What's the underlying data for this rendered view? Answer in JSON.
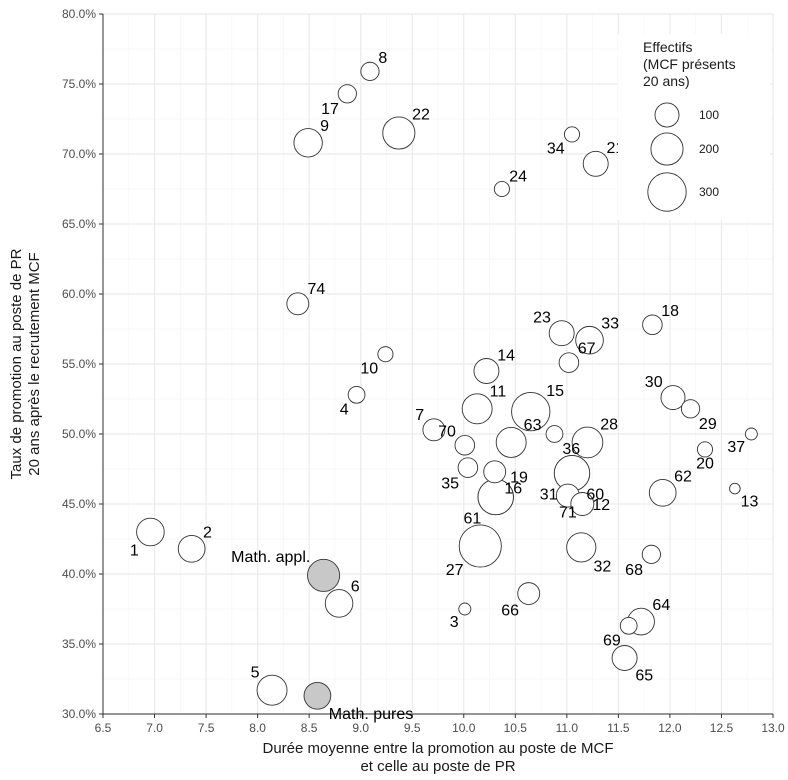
{
  "chart_data": {
    "type": "scatter",
    "xlabel_lines": [
      "Durée moyenne entre la promotion au poste de MCF",
      "et celle au poste de PR"
    ],
    "ylabel_lines": [
      "Taux de promotion au poste de PR",
      "20 ans après le recrutement MCF"
    ],
    "xlim": [
      6.5,
      13.0
    ],
    "ylim": [
      30.0,
      80.0
    ],
    "x_ticks": [
      6.5,
      7.0,
      7.5,
      8.0,
      8.5,
      9.0,
      9.5,
      10.0,
      10.5,
      11.0,
      11.5,
      12.0,
      12.5,
      13.0
    ],
    "x_tick_labels": [
      "6.5",
      "7.0",
      "7.5",
      "8.0",
      "8.5",
      "9.0",
      "9.5",
      "10.0",
      "10.5",
      "11.0",
      "11.5",
      "12.0",
      "12.5",
      "13.0"
    ],
    "y_ticks": [
      30,
      35,
      40,
      45,
      50,
      55,
      60,
      65,
      70,
      75,
      80
    ],
    "y_tick_labels": [
      "30.0%",
      "35.0%",
      "40.0%",
      "45.0%",
      "50.0%",
      "55.0%",
      "60.0%",
      "65.0%",
      "70.0%",
      "75.0%",
      "80.0%"
    ],
    "grid": true,
    "legend": {
      "position": "top-right",
      "title_lines": [
        "Effectifs",
        "(MCF présents",
        "20 ans)"
      ],
      "sizes": [
        100,
        200,
        300
      ],
      "labels": [
        "100",
        "200",
        "300"
      ]
    },
    "colors": {
      "point_fill": "#ffffff",
      "highlight_fill": "#c8c8c8",
      "point_stroke": "#333333"
    },
    "points": [
      {
        "label": "8",
        "x": 9.09,
        "y": 75.9,
        "size": 50,
        "label_pos": "ne"
      },
      {
        "label": "17",
        "x": 8.87,
        "y": 74.3,
        "size": 50,
        "label_pos": "sw"
      },
      {
        "label": "9",
        "x": 8.49,
        "y": 70.8,
        "size": 150,
        "label_pos": "ne"
      },
      {
        "label": "22",
        "x": 9.37,
        "y": 71.5,
        "size": 200,
        "label_pos": "ne"
      },
      {
        "label": "34",
        "x": 11.05,
        "y": 71.4,
        "size": 30,
        "label_pos": "sw"
      },
      {
        "label": "21",
        "x": 11.28,
        "y": 69.3,
        "size": 110,
        "label_pos": "ne"
      },
      {
        "label": "24",
        "x": 10.37,
        "y": 67.5,
        "size": 30,
        "label_pos": "ne"
      },
      {
        "label": "74",
        "x": 8.39,
        "y": 59.3,
        "size": 80,
        "label_pos": "ne"
      },
      {
        "label": "10",
        "x": 9.24,
        "y": 55.7,
        "size": 30,
        "label_pos": "sw"
      },
      {
        "label": "4",
        "x": 8.96,
        "y": 52.8,
        "size": 40,
        "label_pos": "sw"
      },
      {
        "label": "14",
        "x": 10.22,
        "y": 54.5,
        "size": 110,
        "label_pos": "ne"
      },
      {
        "label": "23",
        "x": 10.95,
        "y": 57.2,
        "size": 110,
        "label_pos": "nw"
      },
      {
        "label": "33",
        "x": 11.22,
        "y": 56.7,
        "size": 140,
        "label_pos": "ne"
      },
      {
        "label": "67",
        "x": 11.02,
        "y": 55.1,
        "size": 60,
        "label_pos": "ne"
      },
      {
        "label": "18",
        "x": 11.83,
        "y": 57.8,
        "size": 60,
        "label_pos": "ne"
      },
      {
        "label": "11",
        "x": 10.13,
        "y": 51.8,
        "size": 170,
        "label_pos": "ne"
      },
      {
        "label": "15",
        "x": 10.65,
        "y": 51.6,
        "size": 300,
        "label_pos": "ne"
      },
      {
        "label": "7",
        "x": 9.71,
        "y": 50.3,
        "size": 80,
        "label_pos": "nw"
      },
      {
        "label": "70",
        "x": 10.01,
        "y": 49.2,
        "size": 60,
        "label_pos": "nw"
      },
      {
        "label": "63",
        "x": 10.46,
        "y": 49.4,
        "size": 170,
        "label_pos": "ne"
      },
      {
        "label": "16",
        "x": 10.3,
        "y": 47.3,
        "size": 80,
        "label_pos": "se"
      },
      {
        "label": "35",
        "x": 10.04,
        "y": 47.6,
        "size": 60,
        "label_pos": "sw"
      },
      {
        "label": "19",
        "x": 10.31,
        "y": 45.5,
        "size": 250,
        "label_pos": "ne"
      },
      {
        "label": "61",
        "x": 10.31,
        "y": 45.5,
        "size": 250,
        "label_pos": "sw"
      },
      {
        "label": "36",
        "x": 10.88,
        "y": 50.0,
        "size": 40,
        "label_pos": "se"
      },
      {
        "label": "28",
        "x": 11.2,
        "y": 49.4,
        "size": 180,
        "label_pos": "ne"
      },
      {
        "label": "31",
        "x": 11.05,
        "y": 47.2,
        "size": 250,
        "label_pos": "sw"
      },
      {
        "label": "60",
        "x": 11.05,
        "y": 47.2,
        "size": 250,
        "label_pos": "se"
      },
      {
        "label": "71",
        "x": 11.01,
        "y": 45.6,
        "size": 90,
        "label_pos": "s"
      },
      {
        "label": "12",
        "x": 11.15,
        "y": 45.0,
        "size": 90,
        "label_pos": "e"
      },
      {
        "label": "30",
        "x": 12.03,
        "y": 52.6,
        "size": 100,
        "label_pos": "nw"
      },
      {
        "label": "29",
        "x": 12.2,
        "y": 51.8,
        "size": 50,
        "label_pos": "se"
      },
      {
        "label": "37",
        "x": 12.79,
        "y": 50.0,
        "size": 15,
        "label_pos": "sw"
      },
      {
        "label": "20",
        "x": 12.34,
        "y": 48.9,
        "size": 30,
        "label_pos": "s"
      },
      {
        "label": "62",
        "x": 11.93,
        "y": 45.8,
        "size": 130,
        "label_pos": "ne"
      },
      {
        "label": "13",
        "x": 12.63,
        "y": 46.1,
        "size": 10,
        "label_pos": "se"
      },
      {
        "label": "27",
        "x": 10.16,
        "y": 42.0,
        "size": 370,
        "label_pos": "sw"
      },
      {
        "label": "32",
        "x": 11.14,
        "y": 41.9,
        "size": 160,
        "label_pos": "se"
      },
      {
        "label": "68",
        "x": 11.82,
        "y": 41.4,
        "size": 50,
        "label_pos": "sw"
      },
      {
        "label": "1",
        "x": 6.96,
        "y": 43.0,
        "size": 140,
        "label_pos": "sw"
      },
      {
        "label": "2",
        "x": 7.36,
        "y": 41.8,
        "size": 130,
        "label_pos": "ne"
      },
      {
        "label": "Math. appl.",
        "x": 8.64,
        "y": 39.9,
        "size": 200,
        "label_pos": "nw",
        "highlight": true
      },
      {
        "label": "6",
        "x": 8.79,
        "y": 37.9,
        "size": 140,
        "label_pos": "ne"
      },
      {
        "label": "3",
        "x": 10.01,
        "y": 37.5,
        "size": 15,
        "label_pos": "sw"
      },
      {
        "label": "66",
        "x": 10.63,
        "y": 38.6,
        "size": 80,
        "label_pos": "sw"
      },
      {
        "label": "64",
        "x": 11.72,
        "y": 36.6,
        "size": 130,
        "label_pos": "ne"
      },
      {
        "label": "69",
        "x": 11.6,
        "y": 36.3,
        "size": 40,
        "label_pos": "sw"
      },
      {
        "label": "65",
        "x": 11.56,
        "y": 34.0,
        "size": 110,
        "label_pos": "se"
      },
      {
        "label": "5",
        "x": 8.14,
        "y": 31.7,
        "size": 170,
        "label_pos": "nw"
      },
      {
        "label": "Math. pures",
        "x": 8.58,
        "y": 31.3,
        "size": 130,
        "label_pos": "se",
        "highlight": true
      }
    ]
  }
}
